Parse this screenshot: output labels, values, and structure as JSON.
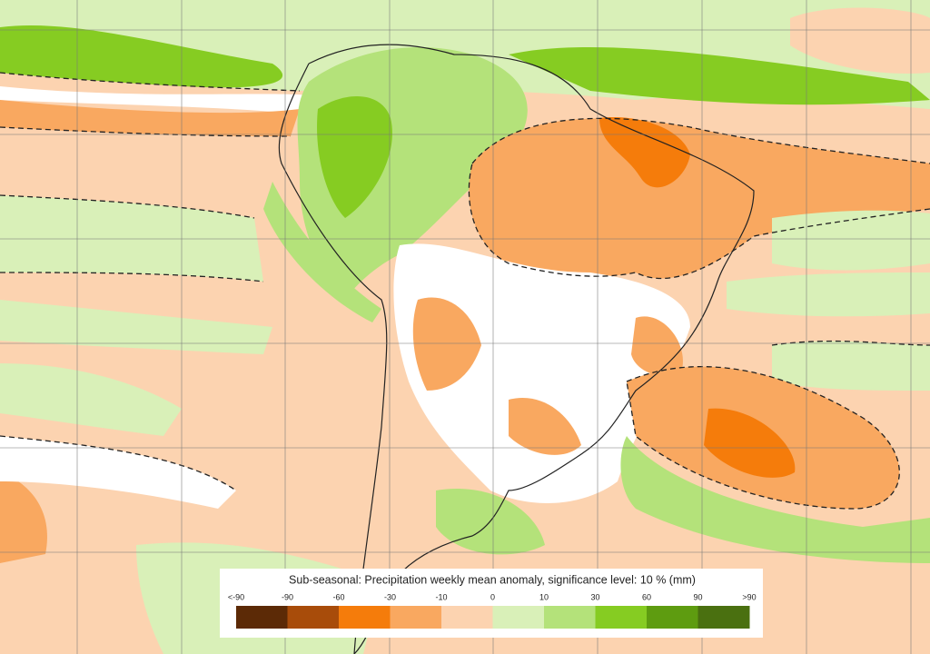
{
  "legend": {
    "title": "Sub-seasonal: Precipitation weekly mean anomaly, significance level: 10 % (mm)",
    "labels": [
      "<-90",
      "-90",
      "-60",
      "-30",
      "-10",
      "0",
      "10",
      "30",
      "60",
      "90",
      ">90"
    ],
    "colors": [
      "#5c2a06",
      "#a84c0a",
      "#f57c0b",
      "#f9a860",
      "#fcd3b0",
      "#d9f0b8",
      "#b4e27a",
      "#86cc22",
      "#5e9c10",
      "#4a7010"
    ]
  }
}
